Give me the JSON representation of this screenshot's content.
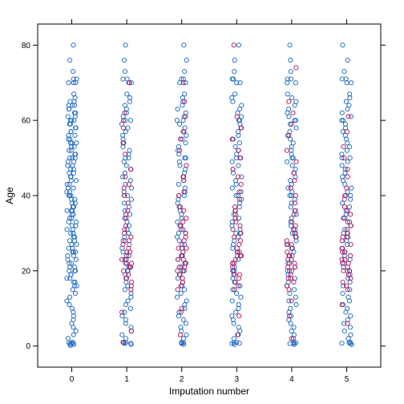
{
  "chart_data": {
    "type": "scatter",
    "title": "",
    "xlabel": "Imputation number",
    "ylabel": "Age",
    "x_ticks": [
      0,
      1,
      2,
      3,
      4,
      5
    ],
    "y_ticks": [
      0,
      20,
      40,
      60,
      80
    ],
    "x_tick_labels": [
      "0",
      "1",
      "2",
      "3",
      "4",
      "5"
    ],
    "y_tick_labels": [
      "0",
      "20",
      "40",
      "60",
      "80"
    ],
    "xlim": [
      -0.62,
      5.62
    ],
    "ylim": [
      -5.6,
      85.6
    ],
    "grid": false,
    "legend": "none",
    "jitter": "horizontal within each imputation column",
    "series": [
      {
        "role": "observed",
        "color": "#1565c0",
        "marker": "open-circle",
        "columns": [
          {
            "imputation": 0,
            "values": [
              80,
              76,
              73,
              71,
              71,
              70,
              70,
              70,
              67,
              66,
              65,
              65,
              64,
              64,
              64,
              63,
              63,
              62,
              62,
              61,
              61,
              60,
              60,
              60,
              59,
              59,
              58,
              58,
              57,
              57,
              56,
              56,
              55,
              55,
              54,
              54,
              54,
              53,
              53,
              52,
              52,
              51,
              51,
              50,
              50,
              50,
              49,
              49,
              48,
              48,
              47,
              47,
              46,
              46,
              45,
              45,
              45,
              44,
              44,
              43,
              43,
              42,
              42,
              41,
              41,
              40,
              40,
              40,
              39,
              39,
              38,
              38,
              37,
              37,
              36,
              36,
              36,
              35,
              35,
              34,
              34,
              33,
              33,
              32,
              32,
              31,
              31,
              30,
              30,
              30,
              29,
              29,
              28,
              28,
              27,
              27,
              26,
              26,
              25,
              25,
              25,
              24,
              24,
              23,
              23,
              22,
              22,
              21,
              21,
              20,
              20,
              20,
              19,
              19,
              18,
              18,
              17,
              17,
              16,
              16,
              15,
              14,
              13,
              12,
              11,
              10,
              9,
              8,
              7,
              6,
              5,
              4,
              3,
              2,
              1,
              0.9,
              0.75,
              0.67,
              0.5,
              0.42,
              0.17
            ]
          },
          {
            "imputation": 1,
            "values": [
              80,
              76,
              73,
              71,
              71,
              70,
              70,
              67,
              66,
              65,
              64,
              63,
              62,
              61,
              60,
              60,
              59,
              58,
              57,
              56,
              55,
              54,
              53,
              52,
              51,
              50,
              50,
              49,
              48,
              47,
              46,
              45,
              44,
              43,
              42,
              41,
              40,
              40,
              39,
              38,
              37,
              36,
              35,
              34,
              33,
              32,
              31,
              30,
              30,
              29,
              28,
              27,
              26,
              25,
              24,
              23,
              22,
              21,
              20,
              20,
              19,
              18,
              17,
              16,
              15,
              14,
              13,
              12,
              11,
              10,
              9,
              8,
              7,
              6,
              5,
              4,
              3,
              2,
              1,
              0.9,
              0.75,
              0.67,
              0.42
            ]
          },
          {
            "imputation": 2,
            "values": [
              80,
              76,
              73,
              71,
              71,
              70,
              70,
              67,
              66,
              65,
              64,
              63,
              62,
              61,
              60,
              60,
              59,
              58,
              57,
              56,
              55,
              54,
              53,
              52,
              51,
              50,
              50,
              49,
              48,
              47,
              46,
              45,
              44,
              43,
              42,
              41,
              40,
              40,
              39,
              38,
              37,
              36,
              35,
              34,
              33,
              32,
              31,
              30,
              30,
              29,
              28,
              27,
              26,
              25,
              24,
              23,
              22,
              21,
              20,
              20,
              19,
              18,
              17,
              16,
              15,
              14,
              13,
              12,
              11,
              10,
              9,
              8,
              7,
              6,
              5,
              4,
              3,
              2,
              1,
              0.9,
              0.75,
              0.67,
              0.42
            ]
          },
          {
            "imputation": 3,
            "values": [
              80,
              76,
              73,
              71,
              71,
              70,
              70,
              67,
              66,
              65,
              64,
              63,
              62,
              61,
              60,
              60,
              59,
              58,
              57,
              56,
              55,
              54,
              53,
              52,
              51,
              50,
              50,
              49,
              48,
              47,
              46,
              45,
              44,
              43,
              42,
              41,
              40,
              40,
              39,
              38,
              37,
              36,
              35,
              34,
              33,
              32,
              31,
              30,
              30,
              29,
              28,
              27,
              26,
              25,
              24,
              23,
              22,
              21,
              20,
              20,
              19,
              18,
              17,
              16,
              15,
              14,
              13,
              12,
              11,
              10,
              9,
              8,
              7,
              6,
              5,
              4,
              3,
              2,
              1,
              0.9,
              0.75,
              0.67,
              0.42
            ]
          },
          {
            "imputation": 4,
            "values": [
              80,
              76,
              73,
              71,
              71,
              70,
              70,
              67,
              66,
              65,
              64,
              63,
              62,
              61,
              60,
              60,
              59,
              58,
              57,
              56,
              55,
              54,
              53,
              52,
              51,
              50,
              50,
              49,
              48,
              47,
              46,
              45,
              44,
              43,
              42,
              41,
              40,
              40,
              39,
              38,
              37,
              36,
              35,
              34,
              33,
              32,
              31,
              30,
              30,
              29,
              28,
              27,
              26,
              25,
              24,
              23,
              22,
              21,
              20,
              20,
              19,
              18,
              17,
              16,
              15,
              14,
              13,
              12,
              11,
              10,
              9,
              8,
              7,
              6,
              5,
              4,
              3,
              2,
              1,
              0.9,
              0.75,
              0.67,
              0.42
            ]
          },
          {
            "imputation": 5,
            "values": [
              80,
              76,
              73,
              71,
              71,
              70,
              70,
              67,
              66,
              65,
              64,
              63,
              62,
              61,
              60,
              60,
              59,
              58,
              57,
              56,
              55,
              54,
              53,
              52,
              51,
              50,
              50,
              49,
              48,
              47,
              46,
              45,
              44,
              43,
              42,
              41,
              40,
              40,
              39,
              38,
              37,
              36,
              35,
              34,
              33,
              32,
              31,
              30,
              30,
              29,
              28,
              27,
              26,
              25,
              24,
              23,
              22,
              21,
              20,
              20,
              19,
              18,
              17,
              16,
              15,
              14,
              13,
              12,
              11,
              10,
              9,
              8,
              7,
              6,
              5,
              4,
              3,
              2,
              1,
              0.9,
              0.75,
              0.67,
              0.42
            ]
          }
        ]
      },
      {
        "role": "imputed",
        "color": "#b0125b",
        "marker": "open-circle",
        "columns": [
          {
            "imputation": 1,
            "values": [
              70,
              62,
              60,
              58,
              54,
              51,
              47,
              45,
              43,
              42,
              40,
              38,
              36,
              35,
              34,
              32,
              31,
              30,
              29,
              28,
              28,
              27,
              26,
              25,
              25,
              24,
              23,
              23,
              22,
              22,
              21,
              21,
              20,
              19,
              18,
              18,
              17,
              16,
              15,
              9,
              4,
              1
            ]
          },
          {
            "imputation": 2,
            "values": [
              70,
              65,
              61,
              57,
              55,
              52,
              48,
              45,
              44,
              41,
              40,
              37,
              36,
              34,
              33,
              32,
              31,
              30,
              29,
              28,
              27,
              26,
              26,
              25,
              24,
              24,
              23,
              23,
              22,
              22,
              21,
              21,
              20,
              20,
              19,
              18,
              17,
              16,
              15,
              10,
              9,
              3
            ]
          },
          {
            "imputation": 3,
            "values": [
              80,
              61,
              58,
              55,
              52,
              50,
              47,
              45,
              43,
              41,
              39,
              37,
              36,
              35,
              34,
              33,
              32,
              31,
              30,
              29,
              28,
              27,
              26,
              25,
              25,
              24,
              24,
              23,
              22,
              22,
              21,
              20,
              19,
              19,
              18,
              17,
              16,
              15,
              8,
              3
            ]
          },
          {
            "imputation": 4,
            "values": [
              74,
              65,
              62,
              59,
              56,
              52,
              49,
              46,
              44,
              42,
              40,
              38,
              36,
              35,
              33,
              32,
              31,
              30,
              29,
              28,
              27,
              27,
              26,
              25,
              24,
              24,
              23,
              22,
              22,
              21,
              21,
              20,
              19,
              18,
              18,
              17,
              16,
              15,
              12,
              8,
              2
            ]
          },
          {
            "imputation": 5,
            "values": [
              61,
              57,
              53,
              50,
              47,
              45,
              42,
              40,
              39,
              37,
              36,
              35,
              34,
              33,
              32,
              31,
              30,
              29,
              29,
              28,
              27,
              26,
              25,
              25,
              24,
              23,
              23,
              22,
              22,
              21,
              20,
              20,
              19,
              18,
              17,
              16,
              15,
              11,
              6
            ]
          }
        ]
      }
    ]
  }
}
